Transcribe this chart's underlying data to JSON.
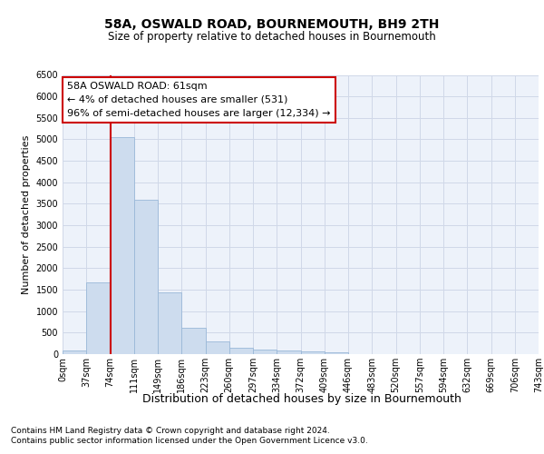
{
  "title1": "58A, OSWALD ROAD, BOURNEMOUTH, BH9 2TH",
  "title2": "Size of property relative to detached houses in Bournemouth",
  "xlabel": "Distribution of detached houses by size in Bournemouth",
  "ylabel": "Number of detached properties",
  "bar_values": [
    75,
    1660,
    5060,
    3600,
    1430,
    620,
    295,
    150,
    110,
    75,
    55,
    45,
    0,
    0,
    0,
    0,
    0,
    0,
    0,
    0
  ],
  "bin_labels": [
    "0sqm",
    "37sqm",
    "74sqm",
    "111sqm",
    "149sqm",
    "186sqm",
    "223sqm",
    "260sqm",
    "297sqm",
    "334sqm",
    "372sqm",
    "409sqm",
    "446sqm",
    "483sqm",
    "520sqm",
    "557sqm",
    "594sqm",
    "632sqm",
    "669sqm",
    "706sqm",
    "743sqm"
  ],
  "bar_color": "#cddcee",
  "bar_edge_color": "#9ab8d8",
  "vline_x": 2,
  "vline_color": "#cc0000",
  "annotation_line1": "58A OSWALD ROAD: 61sqm",
  "annotation_line2": "← 4% of detached houses are smaller (531)",
  "annotation_line3": "96% of semi-detached houses are larger (12,334) →",
  "annotation_box_facecolor": "#ffffff",
  "annotation_box_edgecolor": "#cc0000",
  "ylim_max": 6500,
  "yticks": [
    0,
    500,
    1000,
    1500,
    2000,
    2500,
    3000,
    3500,
    4000,
    4500,
    5000,
    5500,
    6000,
    6500
  ],
  "grid_color": "#d0d8e8",
  "bg_color": "#ffffff",
  "axes_bg_color": "#edf2fa",
  "footer1": "Contains HM Land Registry data © Crown copyright and database right 2024.",
  "footer2": "Contains public sector information licensed under the Open Government Licence v3.0.",
  "title1_fontsize": 10,
  "title2_fontsize": 8.5,
  "ylabel_fontsize": 8,
  "xlabel_fontsize": 9,
  "tick_fontsize": 7,
  "footer_fontsize": 6.5,
  "annot_fontsize": 8
}
